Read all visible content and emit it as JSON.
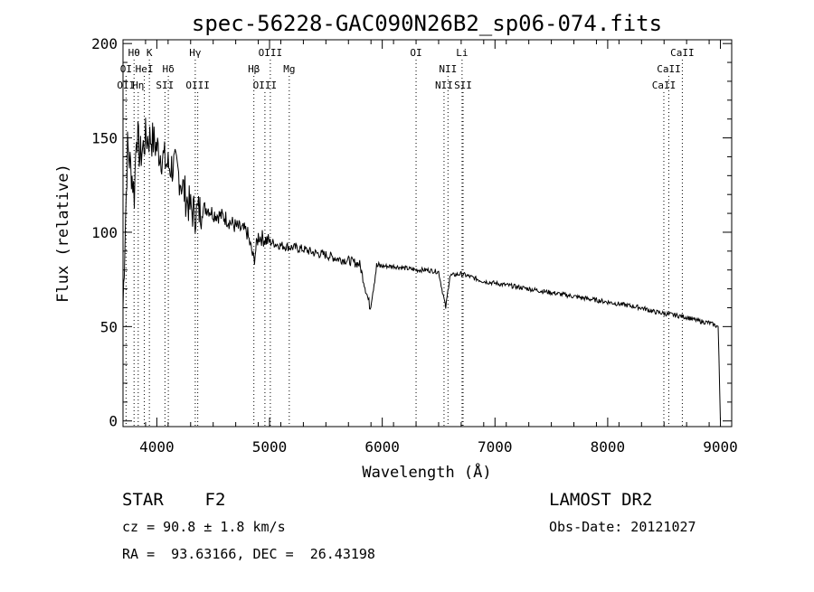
{
  "chart_data": {
    "type": "line",
    "title": "spec-56228-GAC090N26B2_sp06-074.fits",
    "xlabel": "Wavelength (Å)",
    "ylabel": "Flux (relative)",
    "xlim": [
      3700,
      9100
    ],
    "ylim": [
      -3,
      202
    ],
    "xticks": [
      4000,
      5000,
      6000,
      7000,
      8000,
      9000
    ],
    "yticks": [
      0,
      50,
      100,
      150,
      200
    ],
    "grid": false,
    "legend": "none",
    "series": [
      {
        "x": [
          3700,
          3740,
          3780,
          3800,
          3820,
          3850,
          3880,
          3900,
          3950,
          4000,
          4050,
          4100,
          4150,
          4200,
          4250,
          4300,
          4340,
          4400,
          4450,
          4500,
          4600,
          4700,
          4800,
          4861,
          4900,
          5000,
          5100,
          5200,
          5300,
          5400,
          5500,
          5600,
          5700,
          5800,
          5893,
          5950,
          6000,
          6100,
          6200,
          6300,
          6400,
          6500,
          6563,
          6600,
          6700,
          6800,
          6900,
          7000,
          7100,
          7200,
          7300,
          7400,
          7500,
          7600,
          7700,
          7800,
          7900,
          8000,
          8100,
          8200,
          8300,
          8400,
          8500,
          8600,
          8700,
          8800,
          8900,
          8980,
          9000
        ],
        "y": [
          60,
          145,
          130,
          120,
          155,
          140,
          145,
          150,
          150,
          145,
          140,
          135,
          135,
          130,
          120,
          112,
          110,
          112,
          113,
          110,
          108,
          103,
          100,
          85,
          98,
          95,
          93,
          92,
          91,
          89,
          88,
          86,
          85,
          83,
          60,
          82,
          82,
          82,
          81,
          80,
          80,
          79,
          60,
          77,
          78,
          76,
          74,
          73,
          72,
          71,
          70,
          69,
          68,
          67,
          66,
          65,
          64,
          63,
          62,
          61,
          60,
          58,
          57,
          56,
          55,
          53,
          52,
          50,
          0
        ]
      }
    ],
    "line_markers": [
      {
        "label": "Hθ",
        "x": 3798,
        "color": "#000000",
        "row": 1
      },
      {
        "label": "K",
        "x": 3934,
        "color": "#000000",
        "row": 1
      },
      {
        "label": "Hγ",
        "x": 4341,
        "color": "#000000",
        "row": 1
      },
      {
        "label": "OIII",
        "x": 5007,
        "color": "#000000",
        "row": 1
      },
      {
        "label": "OI",
        "x": 6300,
        "color": "#000000",
        "row": 1
      },
      {
        "label": "Li",
        "x": 6708,
        "color": "#000000",
        "row": 1
      },
      {
        "label": "CaII",
        "x": 8662,
        "color": "#000000",
        "row": 1
      },
      {
        "label": "OI",
        "x": 3727,
        "color": "#000000",
        "row": 2
      },
      {
        "label": "HeI",
        "x": 3889,
        "color": "#000000",
        "row": 2
      },
      {
        "label": "Hδ",
        "x": 4102,
        "color": "#000000",
        "row": 2
      },
      {
        "label": "Hβ",
        "x": 4861,
        "color": "#000000",
        "row": 2
      },
      {
        "label": "Mg",
        "x": 5175,
        "color": "#000000",
        "row": 2
      },
      {
        "label": "NII",
        "x": 6583,
        "color": "#000000",
        "row": 2
      },
      {
        "label": "CaII",
        "x": 8542,
        "color": "#000000",
        "row": 2
      },
      {
        "label": "OII",
        "x": 3727,
        "color": "#000000",
        "row": 3
      },
      {
        "label": "Hη",
        "x": 3835,
        "color": "#000000",
        "row": 3
      },
      {
        "label": "SII",
        "x": 4072,
        "color": "#000000",
        "row": 3
      },
      {
        "label": "OIII",
        "x": 4363,
        "color": "#000000",
        "row": 3
      },
      {
        "label": "OIII",
        "x": 4959,
        "color": "#000000",
        "row": 3
      },
      {
        "label": "NII",
        "x": 6548,
        "color": "#000000",
        "row": 3
      },
      {
        "label": "SII",
        "x": 6717,
        "color": "#000000",
        "row": 3
      },
      {
        "label": "CaII",
        "x": 8498,
        "color": "#000000",
        "row": 3
      }
    ],
    "marker_line_colors": [
      "#000000",
      "#ff0000"
    ]
  },
  "info": {
    "class": "STAR    F2",
    "survey": "LAMOST DR2",
    "cz": "cz = 90.8 ± 1.8 km/s",
    "obs_date": "Obs-Date: 20121027",
    "coords": "RA =  93.63166, DEC =  26.43198"
  }
}
